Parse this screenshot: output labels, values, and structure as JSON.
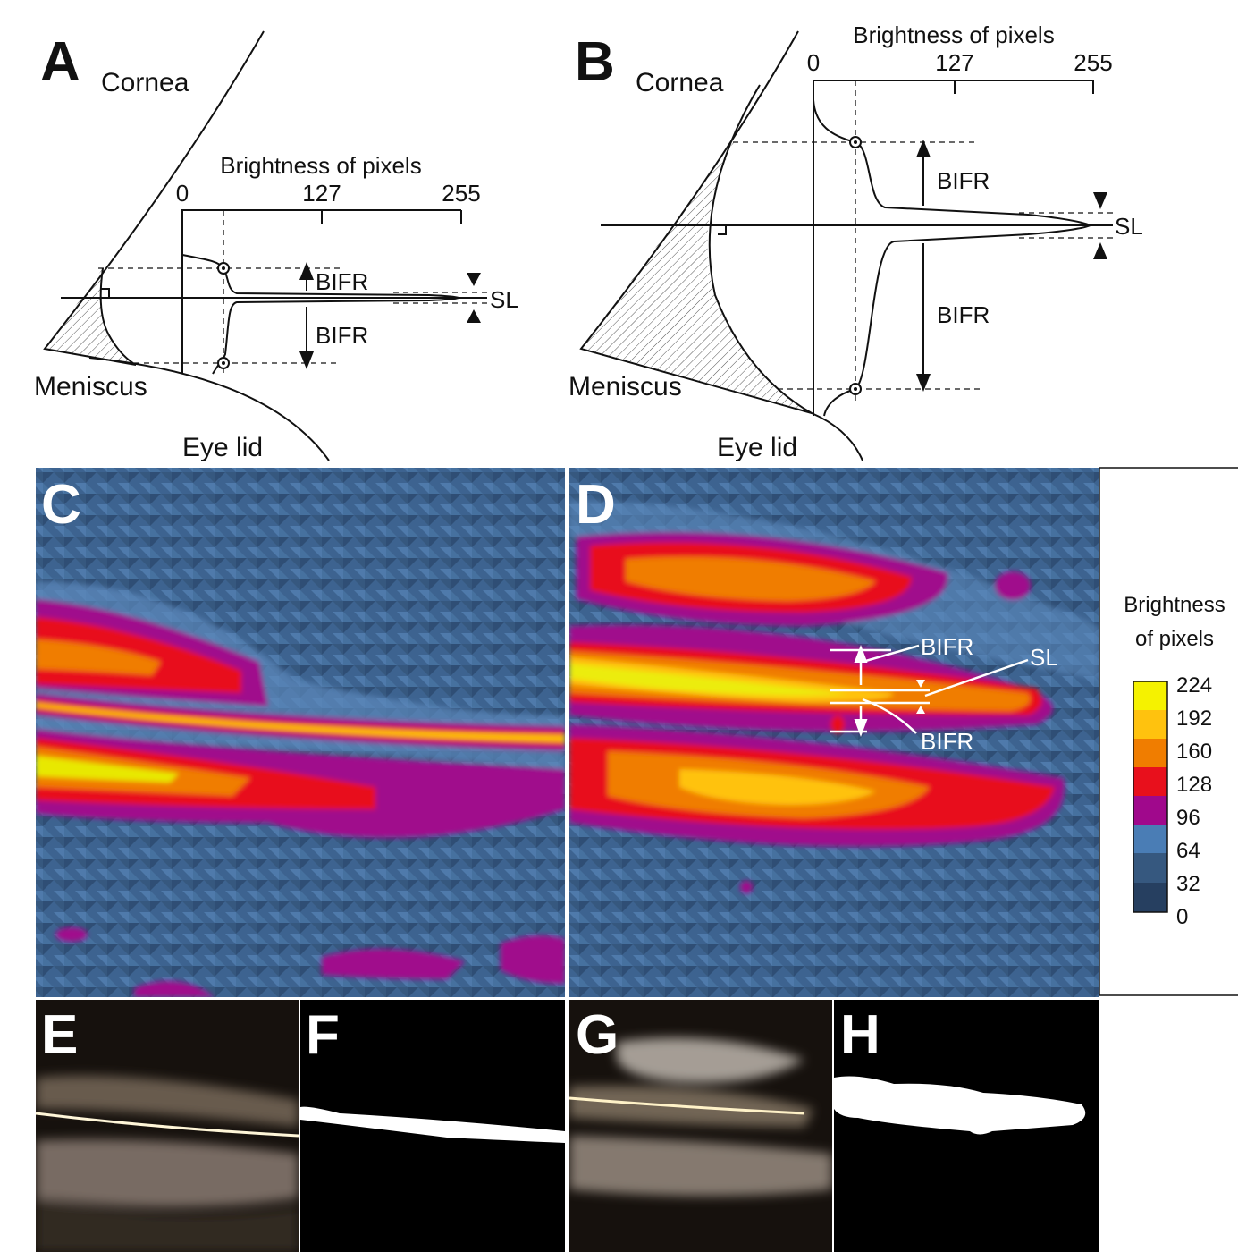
{
  "panels": {
    "A": {
      "label": "A",
      "cornea": "Cornea",
      "meniscus": "Meniscus",
      "eyelid": "Eye lid",
      "axis_title": "Brightness of pixels",
      "ticks": [
        "0",
        "127",
        "255"
      ],
      "bifr_upper": "BIFR",
      "bifr_lower": "BIFR",
      "sl": "SL"
    },
    "B": {
      "label": "B",
      "cornea": "Cornea",
      "meniscus": "Meniscus",
      "eyelid": "Eye lid",
      "axis_title": "Brightness of pixels",
      "ticks": [
        "0",
        "127",
        "255"
      ],
      "bifr_upper": "BIFR",
      "bifr_lower": "BIFR",
      "sl": "SL"
    },
    "C": {
      "label": "C"
    },
    "D": {
      "label": "D",
      "bifr_upper": "BIFR",
      "sl": "SL",
      "bifr_lower": "BIFR"
    },
    "E": {
      "label": "E"
    },
    "F": {
      "label": "F"
    },
    "G": {
      "label": "G"
    },
    "H": {
      "label": "H"
    }
  },
  "colorbar": {
    "title_line1": "Brightness",
    "title_line2": "of pixels",
    "levels": [
      "224",
      "192",
      "160",
      "128",
      "96",
      "64",
      "32",
      "0"
    ]
  }
}
